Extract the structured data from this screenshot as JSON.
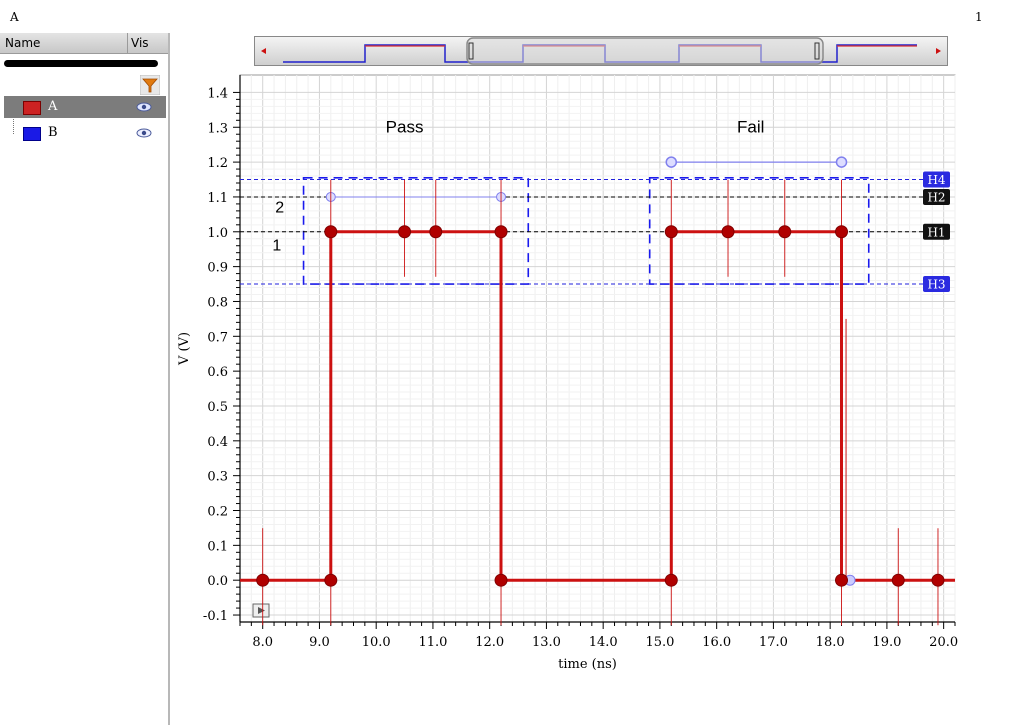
{
  "header": {
    "left_title": "A",
    "right_number": "1"
  },
  "legend": {
    "col_name": "Name",
    "col_vis": "Vis",
    "filter_icon": "filter-funnel-icon",
    "rows": [
      {
        "name": "A",
        "color": "#cc2222",
        "selected": true,
        "icon": "eye-icon"
      },
      {
        "name": "B",
        "color": "#1a1ae6",
        "selected": false,
        "icon": "eye-icon"
      }
    ]
  },
  "colors": {
    "signal": "#cc1111",
    "mask": "#1a1aee",
    "marker_fill": "#ffffff",
    "grid": "#dddddd"
  },
  "chart_data": {
    "type": "line",
    "xlabel": "time (ns)",
    "ylabel": "V (V)",
    "xlim": [
      7.6,
      20.2
    ],
    "ylim": [
      -0.12,
      1.45
    ],
    "xticks": [
      "8.0",
      "9.0",
      "10.0",
      "11.0",
      "12.0",
      "13.0",
      "14.0",
      "15.0",
      "16.0",
      "17.0",
      "18.0",
      "19.0",
      "20.0"
    ],
    "yticks": [
      "-0.1",
      "0.0",
      "0.1",
      "0.2",
      "0.3",
      "0.4",
      "0.5",
      "0.6",
      "0.7",
      "0.8",
      "0.9",
      "1.0",
      "1.1",
      "1.2",
      "1.3",
      "1.4"
    ],
    "grid": true,
    "series": [
      {
        "name": "A",
        "x": [
          7.6,
          9.2,
          9.2,
          12.2,
          12.2,
          15.2,
          15.2,
          18.2,
          18.2,
          20.2
        ],
        "y": [
          0,
          0,
          1.0,
          1.0,
          0,
          0,
          1.0,
          1.0,
          0,
          0
        ]
      }
    ],
    "points": [
      {
        "x": 8.0,
        "y": 0.0
      },
      {
        "x": 9.2,
        "y": 0.0
      },
      {
        "x": 9.2,
        "y": 1.0
      },
      {
        "x": 10.5,
        "y": 1.0
      },
      {
        "x": 11.05,
        "y": 1.0
      },
      {
        "x": 12.2,
        "y": 1.0
      },
      {
        "x": 12.2,
        "y": 0.0
      },
      {
        "x": 15.2,
        "y": 0.0
      },
      {
        "x": 15.2,
        "y": 1.0
      },
      {
        "x": 16.2,
        "y": 1.0
      },
      {
        "x": 17.2,
        "y": 1.0
      },
      {
        "x": 18.2,
        "y": 1.0
      },
      {
        "x": 18.2,
        "y": 0.0
      },
      {
        "x": 19.2,
        "y": 0.0
      },
      {
        "x": 19.9,
        "y": 0.0
      }
    ],
    "hlines": [
      {
        "label": "H4",
        "y": 1.15,
        "color": "#2222dd",
        "box": "blue"
      },
      {
        "label": "H2",
        "y": 1.1,
        "color": "#000000",
        "box": "black"
      },
      {
        "label": "H1",
        "y": 1.0,
        "color": "#000000",
        "box": "black"
      },
      {
        "label": "H3",
        "y": 0.85,
        "color": "#2222dd",
        "box": "blue"
      }
    ],
    "mask_boxes": [
      {
        "x0": 8.72,
        "x1": 12.68,
        "y0": 0.85,
        "y1": 1.155
      },
      {
        "x0": 14.82,
        "x1": 18.68,
        "y0": 0.85,
        "y1": 1.155
      }
    ],
    "annotations": [
      {
        "text": "Pass",
        "x": 10.5,
        "y": 1.3
      },
      {
        "text": "Fail",
        "x": 16.6,
        "y": 1.3
      },
      {
        "text": "2",
        "x": 8.3,
        "y": 1.07
      },
      {
        "text": "1",
        "x": 8.25,
        "y": 0.96
      }
    ]
  }
}
